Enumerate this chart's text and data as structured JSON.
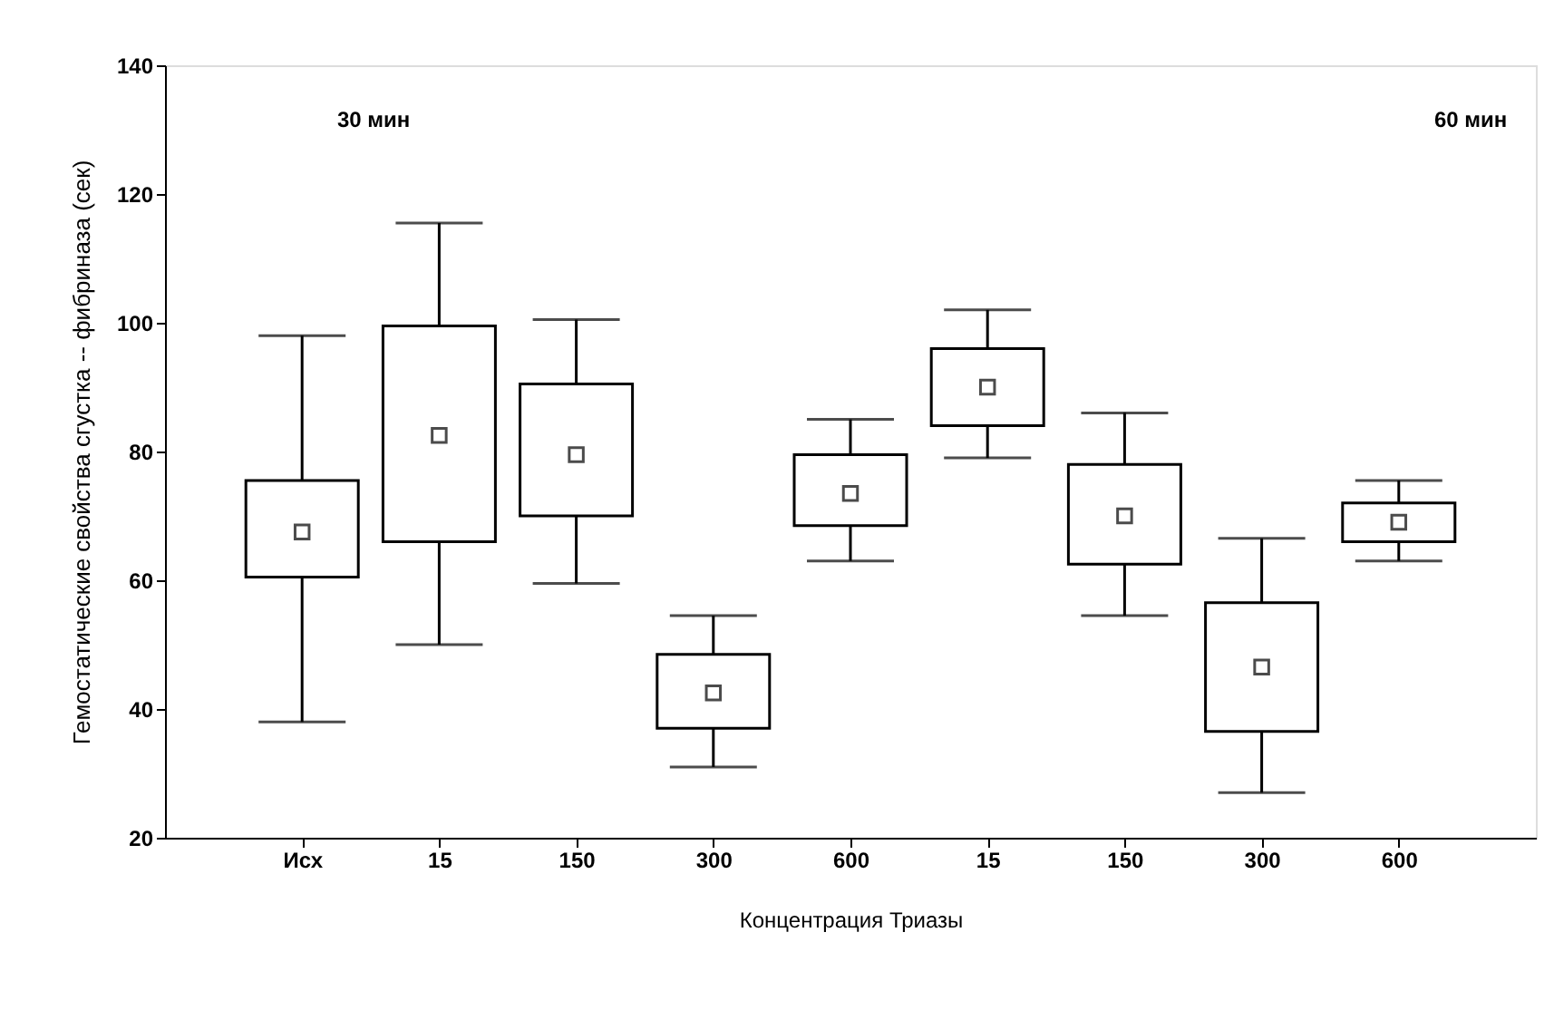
{
  "chart_data": {
    "type": "box",
    "xlabel": "Концентрация Триазы",
    "ylabel": "Гемостатические свойства сгустка -- фибриназа (сек)",
    "categories": [
      "Исх",
      "15",
      "150",
      "300",
      "600",
      "15",
      "150",
      "300",
      "600"
    ],
    "boxes": [
      {
        "low": 38,
        "q1": 60.5,
        "median": 67.5,
        "q3": 75.5,
        "high": 98
      },
      {
        "low": 50,
        "q1": 66,
        "median": 82.5,
        "q3": 99.5,
        "high": 115.5
      },
      {
        "low": 59.5,
        "q1": 70,
        "median": 79.5,
        "q3": 90.5,
        "high": 100.5
      },
      {
        "low": 31,
        "q1": 37,
        "median": 42.5,
        "q3": 48.5,
        "high": 54.5
      },
      {
        "low": 63,
        "q1": 68.5,
        "median": 73.5,
        "q3": 79.5,
        "high": 85
      },
      {
        "low": 79,
        "q1": 84,
        "median": 90,
        "q3": 96,
        "high": 102
      },
      {
        "low": 54.5,
        "q1": 62.5,
        "median": 70,
        "q3": 78,
        "high": 86
      },
      {
        "low": 27,
        "q1": 36.5,
        "median": 46.5,
        "q3": 56.5,
        "high": 66.5
      },
      {
        "low": 63,
        "q1": 66,
        "median": 69,
        "q3": 72,
        "high": 75.5
      }
    ],
    "color": "#ffffff",
    "ylim": [
      20,
      140
    ],
    "yticks": [
      20,
      40,
      60,
      80,
      100,
      120,
      140
    ],
    "grid": false,
    "marker": "square",
    "annotations": [
      "30 мин",
      "60 мин"
    ]
  }
}
